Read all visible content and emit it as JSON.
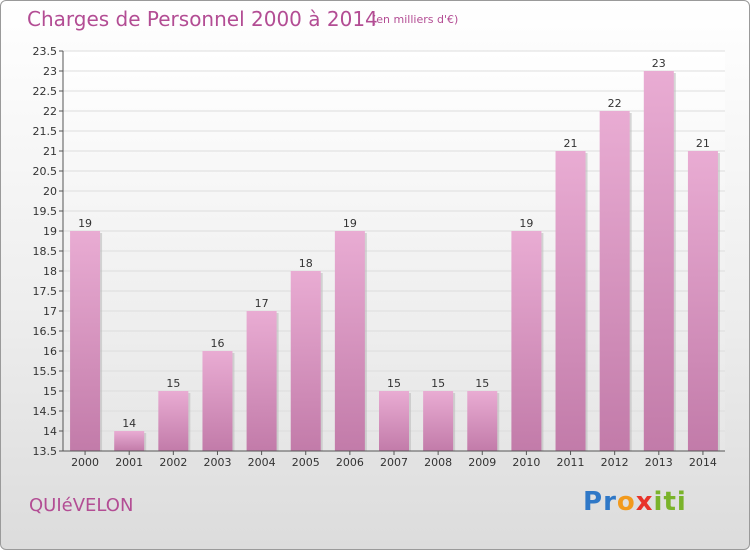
{
  "title": "Charges de Personnel 2000 à 2014",
  "subtitle": "(en milliers d'€)",
  "place": "QUIéVELON",
  "logo": {
    "letters": [
      "P",
      "r",
      "o",
      "x",
      "i",
      "t",
      "i"
    ],
    "colors": [
      "#2f78c7",
      "#2f78c7",
      "#f29a1d",
      "#e8332a",
      "#7ab32a",
      "#7ab32a",
      "#7ab32a"
    ]
  },
  "colors": {
    "bar": "#d890be",
    "accent": "#b34d94"
  },
  "chart_data": {
    "type": "bar",
    "categories": [
      "2000",
      "2001",
      "2002",
      "2003",
      "2004",
      "2005",
      "2006",
      "2007",
      "2008",
      "2009",
      "2010",
      "2011",
      "2012",
      "2013",
      "2014"
    ],
    "values": [
      19,
      14,
      15,
      16,
      17,
      18,
      19,
      15,
      15,
      15,
      19,
      21,
      22,
      23,
      21
    ],
    "value_labels": [
      "19",
      "14",
      "15",
      "16",
      "17",
      "18",
      "19",
      "15",
      "15",
      "15",
      "19",
      "21",
      "22",
      "23",
      "21"
    ],
    "ylim": [
      13.5,
      23.5
    ],
    "yticks": [
      13.5,
      14,
      14.5,
      15,
      15.5,
      16,
      16.5,
      17,
      17.5,
      18,
      18.5,
      19,
      19.5,
      20,
      20.5,
      21,
      21.5,
      22,
      22.5,
      23,
      23.5
    ],
    "grid": true
  }
}
